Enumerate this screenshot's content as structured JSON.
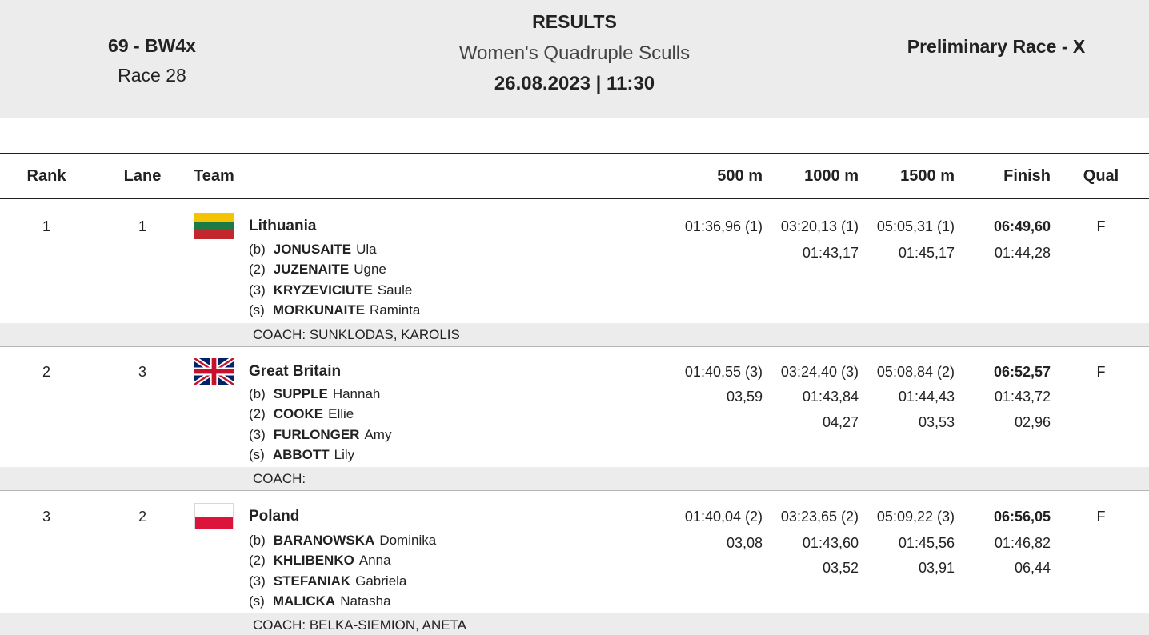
{
  "header": {
    "event_code": "69 - BW4x",
    "race_number": "Race 28",
    "title": "RESULTS",
    "event_name": "Women's Quadruple Sculls",
    "datetime": "26.08.2023 | 11:30",
    "race_phase": "Preliminary Race - X"
  },
  "columns": {
    "rank": "Rank",
    "lane": "Lane",
    "team": "Team",
    "split500": "500 m",
    "split1000": "1000 m",
    "split1500": "1500 m",
    "finish": "Finish",
    "qual": "Qual"
  },
  "rows": [
    {
      "rank": "1",
      "lane": "1",
      "team": "Lithuania",
      "flag": "lithuania-flag",
      "crew": [
        {
          "pos": "(b)",
          "surname": "JONUSAITE",
          "first": "Ula"
        },
        {
          "pos": "(2)",
          "surname": "JUZENAITE",
          "first": "Ugne"
        },
        {
          "pos": "(3)",
          "surname": "KRYZEVICIUTE",
          "first": "Saule"
        },
        {
          "pos": "(s)",
          "surname": "MORKUNAITE",
          "first": "Raminta"
        }
      ],
      "coach": "COACH: SUNKLODAS, KAROLIS",
      "split500": {
        "time": "01:36,96 (1)",
        "split": "",
        "diff": ""
      },
      "split1000": {
        "time": "03:20,13 (1)",
        "split": "01:43,17",
        "diff": ""
      },
      "split1500": {
        "time": "05:05,31 (1)",
        "split": "01:45,17",
        "diff": ""
      },
      "finish": {
        "time": "06:49,60",
        "split": "01:44,28",
        "diff": ""
      },
      "qual": "F"
    },
    {
      "rank": "2",
      "lane": "3",
      "team": "Great Britain",
      "flag": "great-britain-flag",
      "crew": [
        {
          "pos": "(b)",
          "surname": "SUPPLE",
          "first": "Hannah"
        },
        {
          "pos": "(2)",
          "surname": "COOKE",
          "first": "Ellie"
        },
        {
          "pos": "(3)",
          "surname": "FURLONGER",
          "first": "Amy"
        },
        {
          "pos": "(s)",
          "surname": "ABBOTT",
          "first": "Lily"
        }
      ],
      "coach": "COACH:",
      "split500": {
        "time": "01:40,55 (3)",
        "split": "03,59",
        "diff": ""
      },
      "split1000": {
        "time": "03:24,40 (3)",
        "split": "01:43,84",
        "diff": "04,27"
      },
      "split1500": {
        "time": "05:08,84 (2)",
        "split": "01:44,43",
        "diff": "03,53"
      },
      "finish": {
        "time": "06:52,57",
        "split": "01:43,72",
        "diff": "02,96"
      },
      "qual": "F"
    },
    {
      "rank": "3",
      "lane": "2",
      "team": "Poland",
      "flag": "poland-flag",
      "crew": [
        {
          "pos": "(b)",
          "surname": "BARANOWSKA",
          "first": "Dominika"
        },
        {
          "pos": "(2)",
          "surname": "KHLIBENKO",
          "first": "Anna"
        },
        {
          "pos": "(3)",
          "surname": "STEFANIAK",
          "first": "Gabriela"
        },
        {
          "pos": "(s)",
          "surname": "MALICKA",
          "first": "Natasha"
        }
      ],
      "coach": "COACH: BELKA-SIEMION, ANETA",
      "split500": {
        "time": "01:40,04 (2)",
        "split": "03,08",
        "diff": ""
      },
      "split1000": {
        "time": "03:23,65 (2)",
        "split": "01:43,60",
        "diff": "03,52"
      },
      "split1500": {
        "time": "05:09,22 (3)",
        "split": "01:45,56",
        "diff": "03,91"
      },
      "finish": {
        "time": "06:56,05",
        "split": "01:46,82",
        "diff": "06,44"
      },
      "qual": "F"
    }
  ]
}
